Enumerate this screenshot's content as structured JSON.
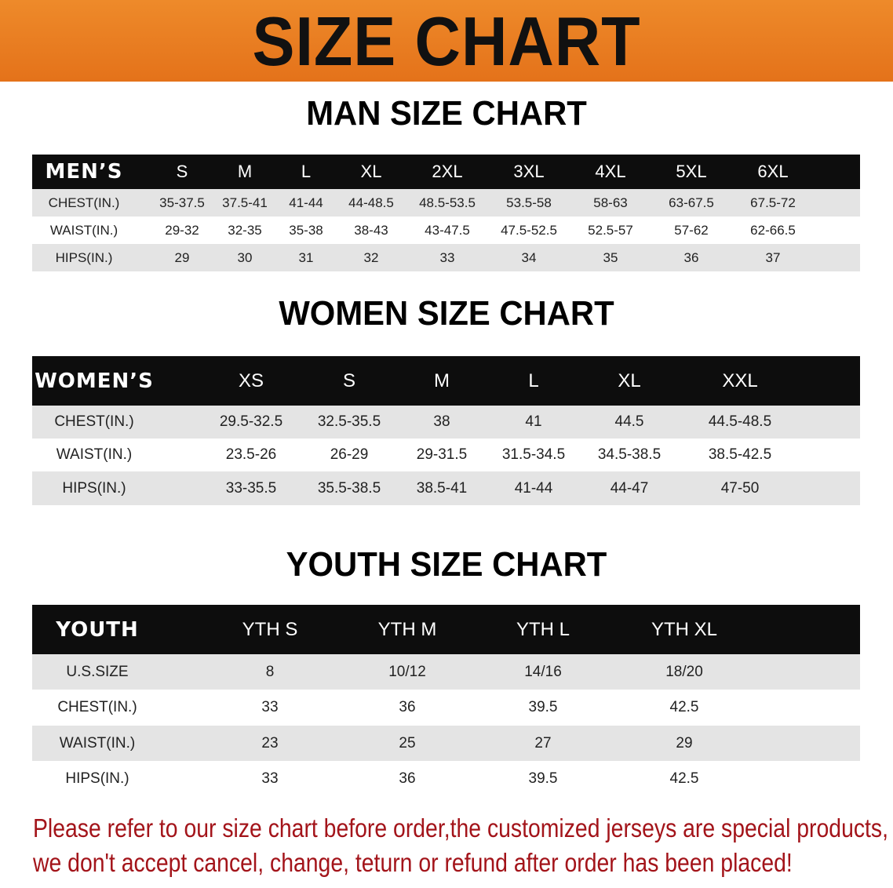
{
  "banner": {
    "title": "SIZE CHART",
    "color": "#e97d20"
  },
  "men": {
    "title": "MAN SIZE CHART",
    "header": [
      "MEN’S",
      "S",
      "M",
      "L",
      "XL",
      "2XL",
      "3XL",
      "4XL",
      "5XL",
      "6XL"
    ],
    "rows": [
      [
        "CHEST(IN.)",
        "35-37.5",
        "37.5-41",
        "41-44",
        "44-48.5",
        "48.5-53.5",
        "53.5-58",
        "58-63",
        "63-67.5",
        "67.5-72"
      ],
      [
        "WAIST(IN.)",
        "29-32",
        "32-35",
        "35-38",
        "38-43",
        "43-47.5",
        "47.5-52.5",
        "52.5-57",
        "57-62",
        "62-66.5"
      ],
      [
        "HIPS(IN.)",
        "29",
        "30",
        "31",
        "32",
        "33",
        "34",
        "35",
        "36",
        "37"
      ]
    ]
  },
  "women": {
    "title": "WOMEN SIZE CHART",
    "header": [
      "WOMEN’S",
      "XS",
      "S",
      "M",
      "L",
      "XL",
      "XXL"
    ],
    "rows": [
      [
        "CHEST(IN.)",
        "29.5-32.5",
        "32.5-35.5",
        "38",
        "41",
        "44.5",
        "44.5-48.5"
      ],
      [
        "WAIST(IN.)",
        "23.5-26",
        "26-29",
        "29-31.5",
        "31.5-34.5",
        "34.5-38.5",
        "38.5-42.5"
      ],
      [
        "HIPS(IN.)",
        "33-35.5",
        "35.5-38.5",
        "38.5-41",
        "41-44",
        "44-47",
        "47-50"
      ]
    ]
  },
  "youth": {
    "title": "YOUTH SIZE CHART",
    "header": [
      "YOUTH",
      "YTH S",
      "YTH M",
      "YTH L",
      "YTH XL"
    ],
    "rows": [
      [
        "U.S.SIZE",
        "8",
        "10/12",
        "14/16",
        "18/20"
      ],
      [
        "CHEST(IN.)",
        "33",
        "36",
        "39.5",
        "42.5"
      ],
      [
        "WAIST(IN.)",
        "23",
        "25",
        "27",
        "29"
      ],
      [
        "HIPS(IN.)",
        "33",
        "36",
        "39.5",
        "42.5"
      ]
    ]
  },
  "note": {
    "line1": "Please refer to our size chart before order,the customized jerseys are special products,",
    "line2": "we don't accept cancel, change, teturn or refund after order has been placed!",
    "color": "#a3141a"
  }
}
